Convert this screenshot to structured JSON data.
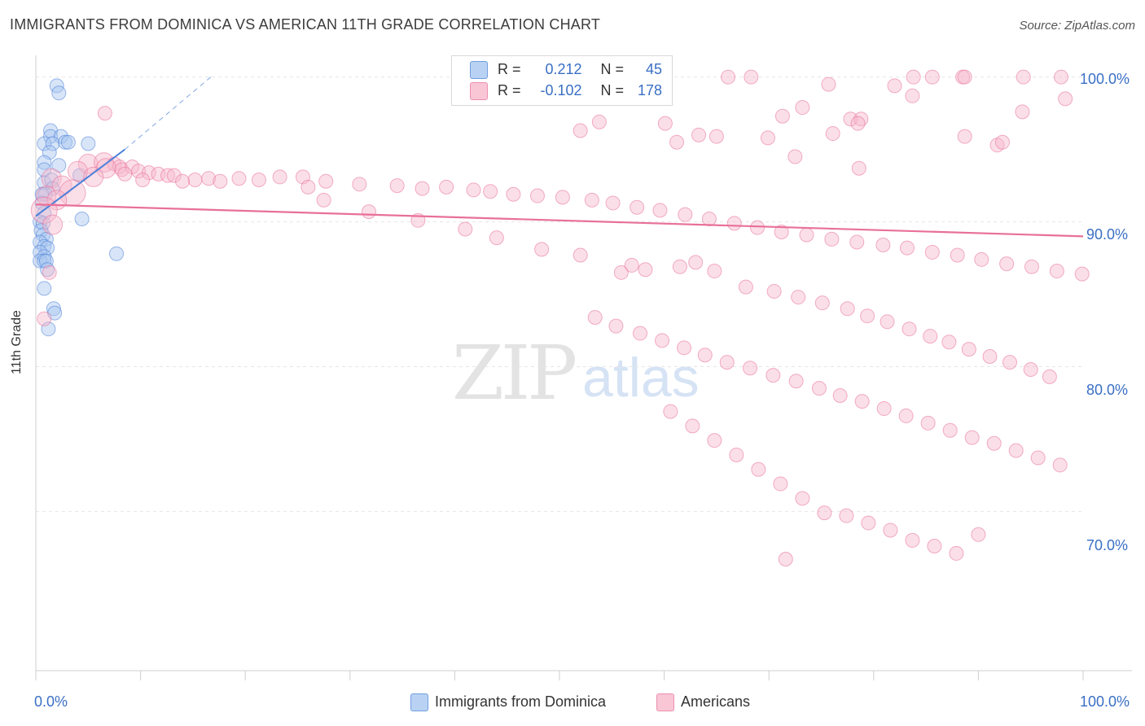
{
  "title": "IMMIGRANTS FROM DOMINICA VS AMERICAN 11TH GRADE CORRELATION CHART",
  "source": "Source: ZipAtlas.com",
  "watermark": {
    "zip": "ZIP",
    "atlas": "atlas"
  },
  "colors": {
    "blue": "#4a80d9",
    "blue_fill": "#a9c6f0",
    "pink": "#e8709a",
    "pink_fill": "#f6b8cc",
    "axis_label": "#3a6fc4"
  },
  "legend": {
    "row1": {
      "r_label": "R =",
      "r_value": "0.212",
      "n_label": "N =",
      "n_value": "45"
    },
    "row2": {
      "r_label": "R =",
      "r_value": "-0.102",
      "n_label": "N =",
      "n_value": "178"
    }
  },
  "bottom_legend": {
    "series1": "Immigrants from Dominica",
    "series2": "Americans"
  },
  "chart_data": {
    "type": "scatter",
    "ylabel": "11th Grade",
    "xlim": [
      0,
      100
    ],
    "ylim": [
      59,
      101.5
    ],
    "y_ticks": [
      {
        "value": 100,
        "label": "100.0%"
      },
      {
        "value": 90,
        "label": "90.0%"
      },
      {
        "value": 80,
        "label": "80.0%"
      },
      {
        "value": 70,
        "label": "70.0%"
      }
    ],
    "x_tick_labels": {
      "min": "0.0%",
      "max": "100.0%"
    },
    "series": [
      {
        "name": "Immigrants from Dominica",
        "color": "#4a80d9",
        "trend": {
          "x0": 0,
          "y0": 90.4,
          "x1": 8.5,
          "y1": 95.0,
          "dash_to_x": 16.7,
          "dash_to_y": 100.0
        },
        "points": [
          [
            2.0,
            99.4
          ],
          [
            2.2,
            98.9
          ],
          [
            1.4,
            96.3
          ],
          [
            1.4,
            95.9
          ],
          [
            2.4,
            95.9
          ],
          [
            0.8,
            95.4
          ],
          [
            1.6,
            95.4
          ],
          [
            2.8,
            95.5
          ],
          [
            3.1,
            95.5
          ],
          [
            5.0,
            95.4
          ],
          [
            1.3,
            94.8
          ],
          [
            0.8,
            94.1
          ],
          [
            2.2,
            93.9
          ],
          [
            0.8,
            93.6
          ],
          [
            4.2,
            93.2
          ],
          [
            0.8,
            92.7
          ],
          [
            1.5,
            92.9
          ],
          [
            1.6,
            92.3
          ],
          [
            0.6,
            91.9
          ],
          [
            0.9,
            91.9
          ],
          [
            0.6,
            91.3
          ],
          [
            0.8,
            90.6
          ],
          [
            0.4,
            90.0
          ],
          [
            0.7,
            89.9
          ],
          [
            4.4,
            90.2
          ],
          [
            0.5,
            89.4
          ],
          [
            0.7,
            89.1
          ],
          [
            1.0,
            88.8
          ],
          [
            0.4,
            88.6
          ],
          [
            0.8,
            88.3
          ],
          [
            1.1,
            88.2
          ],
          [
            0.4,
            87.9
          ],
          [
            0.8,
            87.6
          ],
          [
            0.4,
            87.3
          ],
          [
            0.8,
            87.3
          ],
          [
            1.0,
            87.3
          ],
          [
            7.7,
            87.8
          ],
          [
            1.1,
            86.7
          ],
          [
            0.8,
            85.4
          ],
          [
            1.7,
            84.0
          ],
          [
            1.8,
            83.7
          ],
          [
            1.2,
            82.6
          ]
        ]
      },
      {
        "name": "Americans",
        "color": "#e8709a",
        "trend": {
          "x0": 0,
          "y0": 91.2,
          "x1": 100,
          "y1": 89.0
        },
        "points": [
          [
            66.1,
            100.0
          ],
          [
            68.3,
            100.0
          ],
          [
            83.8,
            100.0
          ],
          [
            85.6,
            100.0
          ],
          [
            88.5,
            100.0
          ],
          [
            88.7,
            100.0
          ],
          [
            94.3,
            100.0
          ],
          [
            97.9,
            100.0
          ],
          [
            75.7,
            99.5
          ],
          [
            82.0,
            99.4
          ],
          [
            83.7,
            98.7
          ],
          [
            98.3,
            98.5
          ],
          [
            73.2,
            97.9
          ],
          [
            94.2,
            97.6
          ],
          [
            6.6,
            97.5
          ],
          [
            71.3,
            97.3
          ],
          [
            77.8,
            97.1
          ],
          [
            60.1,
            96.8
          ],
          [
            78.8,
            97.1
          ],
          [
            53.8,
            96.9
          ],
          [
            78.5,
            96.8
          ],
          [
            52.0,
            96.3
          ],
          [
            63.3,
            96.0
          ],
          [
            65.0,
            95.9
          ],
          [
            69.9,
            95.8
          ],
          [
            76.1,
            96.1
          ],
          [
            88.7,
            95.9
          ],
          [
            91.8,
            95.3
          ],
          [
            92.3,
            95.5
          ],
          [
            61.2,
            95.5
          ],
          [
            72.5,
            94.5
          ],
          [
            5.0,
            94.0
          ],
          [
            6.5,
            94.1
          ],
          [
            7.5,
            94.0
          ],
          [
            8.0,
            93.8
          ],
          [
            6.7,
            93.7
          ],
          [
            78.6,
            93.7
          ],
          [
            4.0,
            93.5
          ],
          [
            8.2,
            93.6
          ],
          [
            9.2,
            93.8
          ],
          [
            9.8,
            93.5
          ],
          [
            8.5,
            93.3
          ],
          [
            10.8,
            93.4
          ],
          [
            11.7,
            93.3
          ],
          [
            5.5,
            93.1
          ],
          [
            10.2,
            92.9
          ],
          [
            12.6,
            93.2
          ],
          [
            13.2,
            93.2
          ],
          [
            15.2,
            92.9
          ],
          [
            14.0,
            92.8
          ],
          [
            16.5,
            93.0
          ],
          [
            17.6,
            92.8
          ],
          [
            19.4,
            93.0
          ],
          [
            21.3,
            92.9
          ],
          [
            23.3,
            93.1
          ],
          [
            25.5,
            93.1
          ],
          [
            26.0,
            92.4
          ],
          [
            27.7,
            92.8
          ],
          [
            30.9,
            92.6
          ],
          [
            34.5,
            92.5
          ],
          [
            36.9,
            92.3
          ],
          [
            39.2,
            92.4
          ],
          [
            41.8,
            92.2
          ],
          [
            43.4,
            92.1
          ],
          [
            45.6,
            91.9
          ],
          [
            47.9,
            91.8
          ],
          [
            50.3,
            91.7
          ],
          [
            53.1,
            91.5
          ],
          [
            55.1,
            91.3
          ],
          [
            57.4,
            91.0
          ],
          [
            59.6,
            90.8
          ],
          [
            62.0,
            90.5
          ],
          [
            64.3,
            90.2
          ],
          [
            66.7,
            89.9
          ],
          [
            68.9,
            89.6
          ],
          [
            71.2,
            89.3
          ],
          [
            73.6,
            89.1
          ],
          [
            76.0,
            88.8
          ],
          [
            78.4,
            88.6
          ],
          [
            80.9,
            88.4
          ],
          [
            83.2,
            88.2
          ],
          [
            85.6,
            87.9
          ],
          [
            88.0,
            87.7
          ],
          [
            90.3,
            87.4
          ],
          [
            92.7,
            87.1
          ],
          [
            95.1,
            86.9
          ],
          [
            97.5,
            86.6
          ],
          [
            99.9,
            86.4
          ],
          [
            55.9,
            86.5
          ],
          [
            61.5,
            86.9
          ],
          [
            63.0,
            87.2
          ],
          [
            64.8,
            86.6
          ],
          [
            67.8,
            85.5
          ],
          [
            70.5,
            85.2
          ],
          [
            72.8,
            84.8
          ],
          [
            75.1,
            84.4
          ],
          [
            77.5,
            84.0
          ],
          [
            79.4,
            83.5
          ],
          [
            81.3,
            83.1
          ],
          [
            83.4,
            82.6
          ],
          [
            85.4,
            82.1
          ],
          [
            87.2,
            81.7
          ],
          [
            89.1,
            81.2
          ],
          [
            91.1,
            80.7
          ],
          [
            93.0,
            80.3
          ],
          [
            95.0,
            79.8
          ],
          [
            96.8,
            79.3
          ],
          [
            53.4,
            83.4
          ],
          [
            55.4,
            82.8
          ],
          [
            57.7,
            82.3
          ],
          [
            59.8,
            81.8
          ],
          [
            61.9,
            81.3
          ],
          [
            63.9,
            80.8
          ],
          [
            66.0,
            80.3
          ],
          [
            68.2,
            79.9
          ],
          [
            70.4,
            79.4
          ],
          [
            72.6,
            79.0
          ],
          [
            74.8,
            78.5
          ],
          [
            76.8,
            78.0
          ],
          [
            78.9,
            77.6
          ],
          [
            81.0,
            77.1
          ],
          [
            83.1,
            76.6
          ],
          [
            85.2,
            76.1
          ],
          [
            87.3,
            75.6
          ],
          [
            89.4,
            75.1
          ],
          [
            91.5,
            74.7
          ],
          [
            93.6,
            74.2
          ],
          [
            95.7,
            73.7
          ],
          [
            97.8,
            73.2
          ],
          [
            60.6,
            76.9
          ],
          [
            62.7,
            75.9
          ],
          [
            64.8,
            74.9
          ],
          [
            66.9,
            73.9
          ],
          [
            69.0,
            72.9
          ],
          [
            71.1,
            71.9
          ],
          [
            73.2,
            70.9
          ],
          [
            75.3,
            69.9
          ],
          [
            77.4,
            69.7
          ],
          [
            79.5,
            69.2
          ],
          [
            81.6,
            68.7
          ],
          [
            83.7,
            68.0
          ],
          [
            85.8,
            67.6
          ],
          [
            87.9,
            67.1
          ],
          [
            90.0,
            68.4
          ],
          [
            71.6,
            66.7
          ],
          [
            1.5,
            93.0
          ],
          [
            2.5,
            92.5
          ],
          [
            3.5,
            92.0
          ],
          [
            1.0,
            91.8
          ],
          [
            2.0,
            91.5
          ],
          [
            0.8,
            90.8
          ],
          [
            1.6,
            89.8
          ],
          [
            1.3,
            86.5
          ],
          [
            0.8,
            83.3
          ],
          [
            27.5,
            91.5
          ],
          [
            31.8,
            90.7
          ],
          [
            36.5,
            90.1
          ],
          [
            41.0,
            89.5
          ],
          [
            44.0,
            88.9
          ],
          [
            48.3,
            88.1
          ],
          [
            52.0,
            87.7
          ],
          [
            56.9,
            87.0
          ],
          [
            58.2,
            86.7
          ]
        ]
      }
    ]
  }
}
